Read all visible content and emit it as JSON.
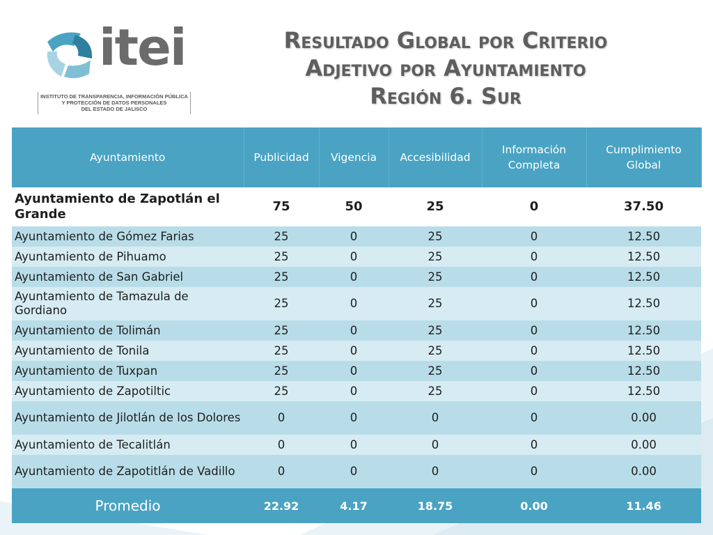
{
  "logo": {
    "wordmark": "itei",
    "caption_lines": [
      "INSTITUTO DE TRANSPARENCIA, INFORMACIÓN PÚBLICA",
      "Y PROTECCIÓN DE DATOS PERSONALES",
      "DEL ESTADO DE JALISCO"
    ]
  },
  "title": {
    "line1": "Resultado Global por Criterio",
    "line2": "Adjetivo por Ayuntamiento",
    "line3": "Región  6. Sur"
  },
  "table": {
    "headers": {
      "ayuntamiento": "Ayuntamiento",
      "publicidad": "Publicidad",
      "vigencia": "Vigencia",
      "accesibilidad": "Accesibilidad",
      "informacion_1": "Información",
      "informacion_2": "Completa",
      "cumplimiento_1": "Cumplimiento",
      "cumplimiento_2": "Global"
    },
    "rows": [
      {
        "name": "Ayuntamiento de Zapotlán el Grande",
        "publicidad": "75",
        "vigencia": "50",
        "accesibilidad": "25",
        "informacion": "0",
        "cumplimiento": "37.50"
      },
      {
        "name": "Ayuntamiento de Gómez Farias",
        "publicidad": "25",
        "vigencia": "0",
        "accesibilidad": "25",
        "informacion": "0",
        "cumplimiento": "12.50"
      },
      {
        "name": "Ayuntamiento de Pihuamo",
        "publicidad": "25",
        "vigencia": "0",
        "accesibilidad": "25",
        "informacion": "0",
        "cumplimiento": "12.50"
      },
      {
        "name": "Ayuntamiento de San Gabriel",
        "publicidad": "25",
        "vigencia": "0",
        "accesibilidad": "25",
        "informacion": "0",
        "cumplimiento": "12.50"
      },
      {
        "name": "Ayuntamiento de Tamazula de Gordiano",
        "publicidad": "25",
        "vigencia": "0",
        "accesibilidad": "25",
        "informacion": "0",
        "cumplimiento": "12.50"
      },
      {
        "name": "Ayuntamiento de Tolimán",
        "publicidad": "25",
        "vigencia": "0",
        "accesibilidad": "25",
        "informacion": "0",
        "cumplimiento": "12.50"
      },
      {
        "name": "Ayuntamiento de Tonila",
        "publicidad": "25",
        "vigencia": "0",
        "accesibilidad": "25",
        "informacion": "0",
        "cumplimiento": "12.50"
      },
      {
        "name": "Ayuntamiento de Tuxpan",
        "publicidad": "25",
        "vigencia": "0",
        "accesibilidad": "25",
        "informacion": "0",
        "cumplimiento": "12.50"
      },
      {
        "name": "Ayuntamiento de Zapotiltic",
        "publicidad": "25",
        "vigencia": "0",
        "accesibilidad": "25",
        "informacion": "0",
        "cumplimiento": "12.50"
      },
      {
        "name": "Ayuntamiento de Jilotlán de los Dolores",
        "publicidad": "0",
        "vigencia": "0",
        "accesibilidad": "0",
        "informacion": "0",
        "cumplimiento": "0.00"
      },
      {
        "name": "Ayuntamiento de Tecalitlán",
        "publicidad": "0",
        "vigencia": "0",
        "accesibilidad": "0",
        "informacion": "0",
        "cumplimiento": "0.00"
      },
      {
        "name": "Ayuntamiento de Zapotitlán de Vadillo",
        "publicidad": "0",
        "vigencia": "0",
        "accesibilidad": "0",
        "informacion": "0",
        "cumplimiento": "0.00"
      }
    ],
    "average": {
      "label": "Promedio",
      "publicidad": "22.92",
      "vigencia": "4.17",
      "accesibilidad": "18.75",
      "informacion": "0.00",
      "cumplimiento": "11.46"
    }
  },
  "colors": {
    "header_bg": "#4aa3c3",
    "row_odd": "#b8dde9",
    "row_even": "#d6ecf2",
    "title_text": "#5e5e5e"
  }
}
